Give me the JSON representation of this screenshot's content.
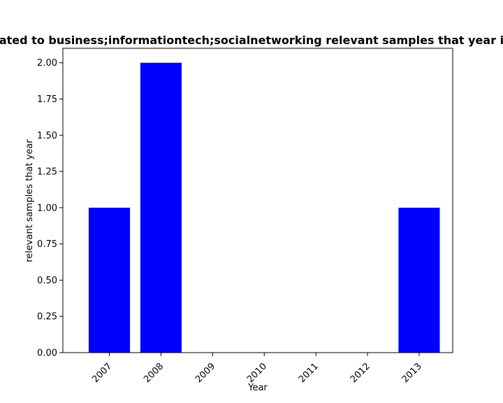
{
  "chart_data": {
    "type": "bar",
    "title": "ated to business;informationtech;socialnetworking relevant samples that year i",
    "xlabel": "Year",
    "ylabel": "relevant samples that year",
    "categories": [
      "2007",
      "2008",
      "2009",
      "2010",
      "2011",
      "2012",
      "2013"
    ],
    "values": [
      1,
      2,
      0,
      0,
      0,
      0,
      1
    ],
    "ylim": [
      0,
      2.1
    ],
    "yticks": [
      "0.00",
      "0.25",
      "0.50",
      "0.75",
      "1.00",
      "1.25",
      "1.50",
      "1.75",
      "2.00"
    ],
    "bar_color": "#0000ff",
    "grid": false
  }
}
